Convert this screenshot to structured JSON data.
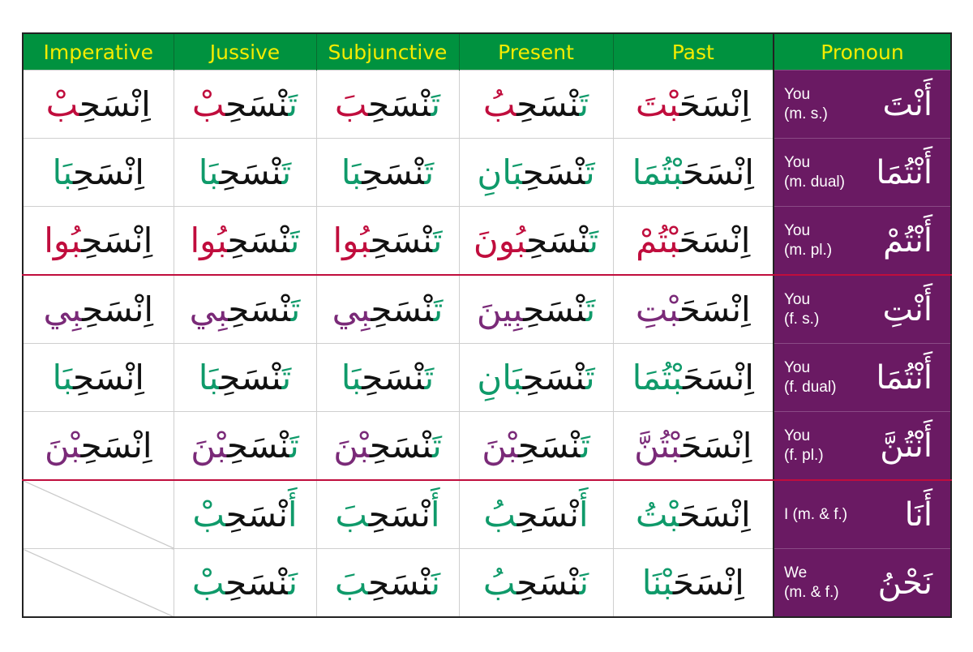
{
  "colors": {
    "header_bg": "#00923f",
    "header_text": "#f5ec00",
    "pronoun_bg": "#6a1a63",
    "red": "#c00d3d",
    "green": "#0f9a6a",
    "purple": "#7a2a78"
  },
  "headers": [
    "Imperative",
    "Jussive",
    "Subjunctive",
    "Present",
    "Past",
    "Pronoun"
  ],
  "rows": [
    {
      "pronoun_en": [
        "You",
        "(m. s.)"
      ],
      "pronoun_ar": "أَنْتَ",
      "imperative": [
        {
          "t": "اِنْسَحِ",
          "c": "k"
        },
        {
          "t": "بْ",
          "c": "r"
        }
      ],
      "jussive": [
        {
          "t": "تَ",
          "c": "g"
        },
        {
          "t": "نْسَحِ",
          "c": "k"
        },
        {
          "t": "بْ",
          "c": "r"
        }
      ],
      "subjunctive": [
        {
          "t": "تَ",
          "c": "g"
        },
        {
          "t": "نْسَحِ",
          "c": "k"
        },
        {
          "t": "بَ",
          "c": "r"
        }
      ],
      "present": [
        {
          "t": "تَ",
          "c": "g"
        },
        {
          "t": "نْسَحِ",
          "c": "k"
        },
        {
          "t": "بُ",
          "c": "r"
        }
      ],
      "past": [
        {
          "t": "اِنْسَحَ",
          "c": "k"
        },
        {
          "t": "بْتَ",
          "c": "r"
        }
      ]
    },
    {
      "pronoun_en": [
        "You",
        "(m. dual)"
      ],
      "pronoun_ar": "أَنْتُمَا",
      "imperative": [
        {
          "t": "اِنْسَحِ",
          "c": "k"
        },
        {
          "t": "بَا",
          "c": "g"
        }
      ],
      "jussive": [
        {
          "t": "تَ",
          "c": "g"
        },
        {
          "t": "نْسَحِ",
          "c": "k"
        },
        {
          "t": "بَا",
          "c": "g"
        }
      ],
      "subjunctive": [
        {
          "t": "تَ",
          "c": "g"
        },
        {
          "t": "نْسَحِ",
          "c": "k"
        },
        {
          "t": "بَا",
          "c": "g"
        }
      ],
      "present": [
        {
          "t": "تَ",
          "c": "g"
        },
        {
          "t": "نْسَحِ",
          "c": "k"
        },
        {
          "t": "بَانِ",
          "c": "g"
        }
      ],
      "past": [
        {
          "t": "اِنْسَحَ",
          "c": "k"
        },
        {
          "t": "بْتُمَا",
          "c": "g"
        }
      ]
    },
    {
      "pronoun_en": [
        "You",
        "(m. pl.)"
      ],
      "pronoun_ar": "أَنْتُمْ",
      "imperative": [
        {
          "t": "اِنْسَحِ",
          "c": "k"
        },
        {
          "t": "بُوا",
          "c": "r"
        }
      ],
      "jussive": [
        {
          "t": "تَ",
          "c": "g"
        },
        {
          "t": "نْسَحِ",
          "c": "k"
        },
        {
          "t": "بُوا",
          "c": "r"
        }
      ],
      "subjunctive": [
        {
          "t": "تَ",
          "c": "g"
        },
        {
          "t": "نْسَحِ",
          "c": "k"
        },
        {
          "t": "بُوا",
          "c": "r"
        }
      ],
      "present": [
        {
          "t": "تَ",
          "c": "g"
        },
        {
          "t": "نْسَحِ",
          "c": "k"
        },
        {
          "t": "بُونَ",
          "c": "r"
        }
      ],
      "past": [
        {
          "t": "اِنْسَحَ",
          "c": "k"
        },
        {
          "t": "بْتُمْ",
          "c": "r"
        }
      ]
    },
    {
      "pronoun_en": [
        "You",
        "(f. s.)"
      ],
      "pronoun_ar": "أَنْتِ",
      "imperative": [
        {
          "t": "اِنْسَحِ",
          "c": "k"
        },
        {
          "t": "بِي",
          "c": "p"
        }
      ],
      "jussive": [
        {
          "t": "تَ",
          "c": "g"
        },
        {
          "t": "نْسَحِ",
          "c": "k"
        },
        {
          "t": "بِي",
          "c": "p"
        }
      ],
      "subjunctive": [
        {
          "t": "تَ",
          "c": "g"
        },
        {
          "t": "نْسَحِ",
          "c": "k"
        },
        {
          "t": "بِي",
          "c": "p"
        }
      ],
      "present": [
        {
          "t": "تَ",
          "c": "g"
        },
        {
          "t": "نْسَحِ",
          "c": "k"
        },
        {
          "t": "بِينَ",
          "c": "p"
        }
      ],
      "past": [
        {
          "t": "اِنْسَحَ",
          "c": "k"
        },
        {
          "t": "بْتِ",
          "c": "p"
        }
      ]
    },
    {
      "pronoun_en": [
        "You",
        "(f. dual)"
      ],
      "pronoun_ar": "أَنْتُمَا",
      "imperative": [
        {
          "t": "اِنْسَحِ",
          "c": "k"
        },
        {
          "t": "بَا",
          "c": "g"
        }
      ],
      "jussive": [
        {
          "t": "تَ",
          "c": "g"
        },
        {
          "t": "نْسَحِ",
          "c": "k"
        },
        {
          "t": "بَا",
          "c": "g"
        }
      ],
      "subjunctive": [
        {
          "t": "تَ",
          "c": "g"
        },
        {
          "t": "نْسَحِ",
          "c": "k"
        },
        {
          "t": "بَا",
          "c": "g"
        }
      ],
      "present": [
        {
          "t": "تَ",
          "c": "g"
        },
        {
          "t": "نْسَحِ",
          "c": "k"
        },
        {
          "t": "بَانِ",
          "c": "g"
        }
      ],
      "past": [
        {
          "t": "اِنْسَحَ",
          "c": "k"
        },
        {
          "t": "بْتُمَا",
          "c": "g"
        }
      ]
    },
    {
      "pronoun_en": [
        "You",
        "(f. pl.)"
      ],
      "pronoun_ar": "أَنْتُنَّ",
      "imperative": [
        {
          "t": "اِنْسَحِ",
          "c": "k"
        },
        {
          "t": "بْنَ",
          "c": "p"
        }
      ],
      "jussive": [
        {
          "t": "تَ",
          "c": "g"
        },
        {
          "t": "نْسَحِ",
          "c": "k"
        },
        {
          "t": "بْنَ",
          "c": "p"
        }
      ],
      "subjunctive": [
        {
          "t": "تَ",
          "c": "g"
        },
        {
          "t": "نْسَحِ",
          "c": "k"
        },
        {
          "t": "بْنَ",
          "c": "p"
        }
      ],
      "present": [
        {
          "t": "تَ",
          "c": "g"
        },
        {
          "t": "نْسَحِ",
          "c": "k"
        },
        {
          "t": "بْنَ",
          "c": "p"
        }
      ],
      "past": [
        {
          "t": "اِنْسَحَ",
          "c": "k"
        },
        {
          "t": "بْتُنَّ",
          "c": "p"
        }
      ]
    },
    {
      "pronoun_en": [
        "I (m. & f.)"
      ],
      "pronoun_ar": "أَنَا",
      "imperative": null,
      "jussive": [
        {
          "t": "أَ",
          "c": "g"
        },
        {
          "t": "نْسَحِ",
          "c": "k"
        },
        {
          "t": "بْ",
          "c": "g"
        }
      ],
      "subjunctive": [
        {
          "t": "أَ",
          "c": "g"
        },
        {
          "t": "نْسَحِ",
          "c": "k"
        },
        {
          "t": "بَ",
          "c": "g"
        }
      ],
      "present": [
        {
          "t": "أَ",
          "c": "g"
        },
        {
          "t": "نْسَحِ",
          "c": "k"
        },
        {
          "t": "بُ",
          "c": "g"
        }
      ],
      "past": [
        {
          "t": "اِنْسَحَ",
          "c": "k"
        },
        {
          "t": "بْتُ",
          "c": "g"
        }
      ]
    },
    {
      "pronoun_en": [
        "We",
        "(m. & f.)"
      ],
      "pronoun_ar": "نَحْنُ",
      "imperative": null,
      "jussive": [
        {
          "t": "نَ",
          "c": "g"
        },
        {
          "t": "نْسَحِ",
          "c": "k"
        },
        {
          "t": "بْ",
          "c": "g"
        }
      ],
      "subjunctive": [
        {
          "t": "نَ",
          "c": "g"
        },
        {
          "t": "نْسَحِ",
          "c": "k"
        },
        {
          "t": "بَ",
          "c": "g"
        }
      ],
      "present": [
        {
          "t": "نَ",
          "c": "g"
        },
        {
          "t": "نْسَحِ",
          "c": "k"
        },
        {
          "t": "بُ",
          "c": "g"
        }
      ],
      "past": [
        {
          "t": "اِنْسَحَ",
          "c": "k"
        },
        {
          "t": "بْنَا",
          "c": "g"
        }
      ]
    }
  ]
}
